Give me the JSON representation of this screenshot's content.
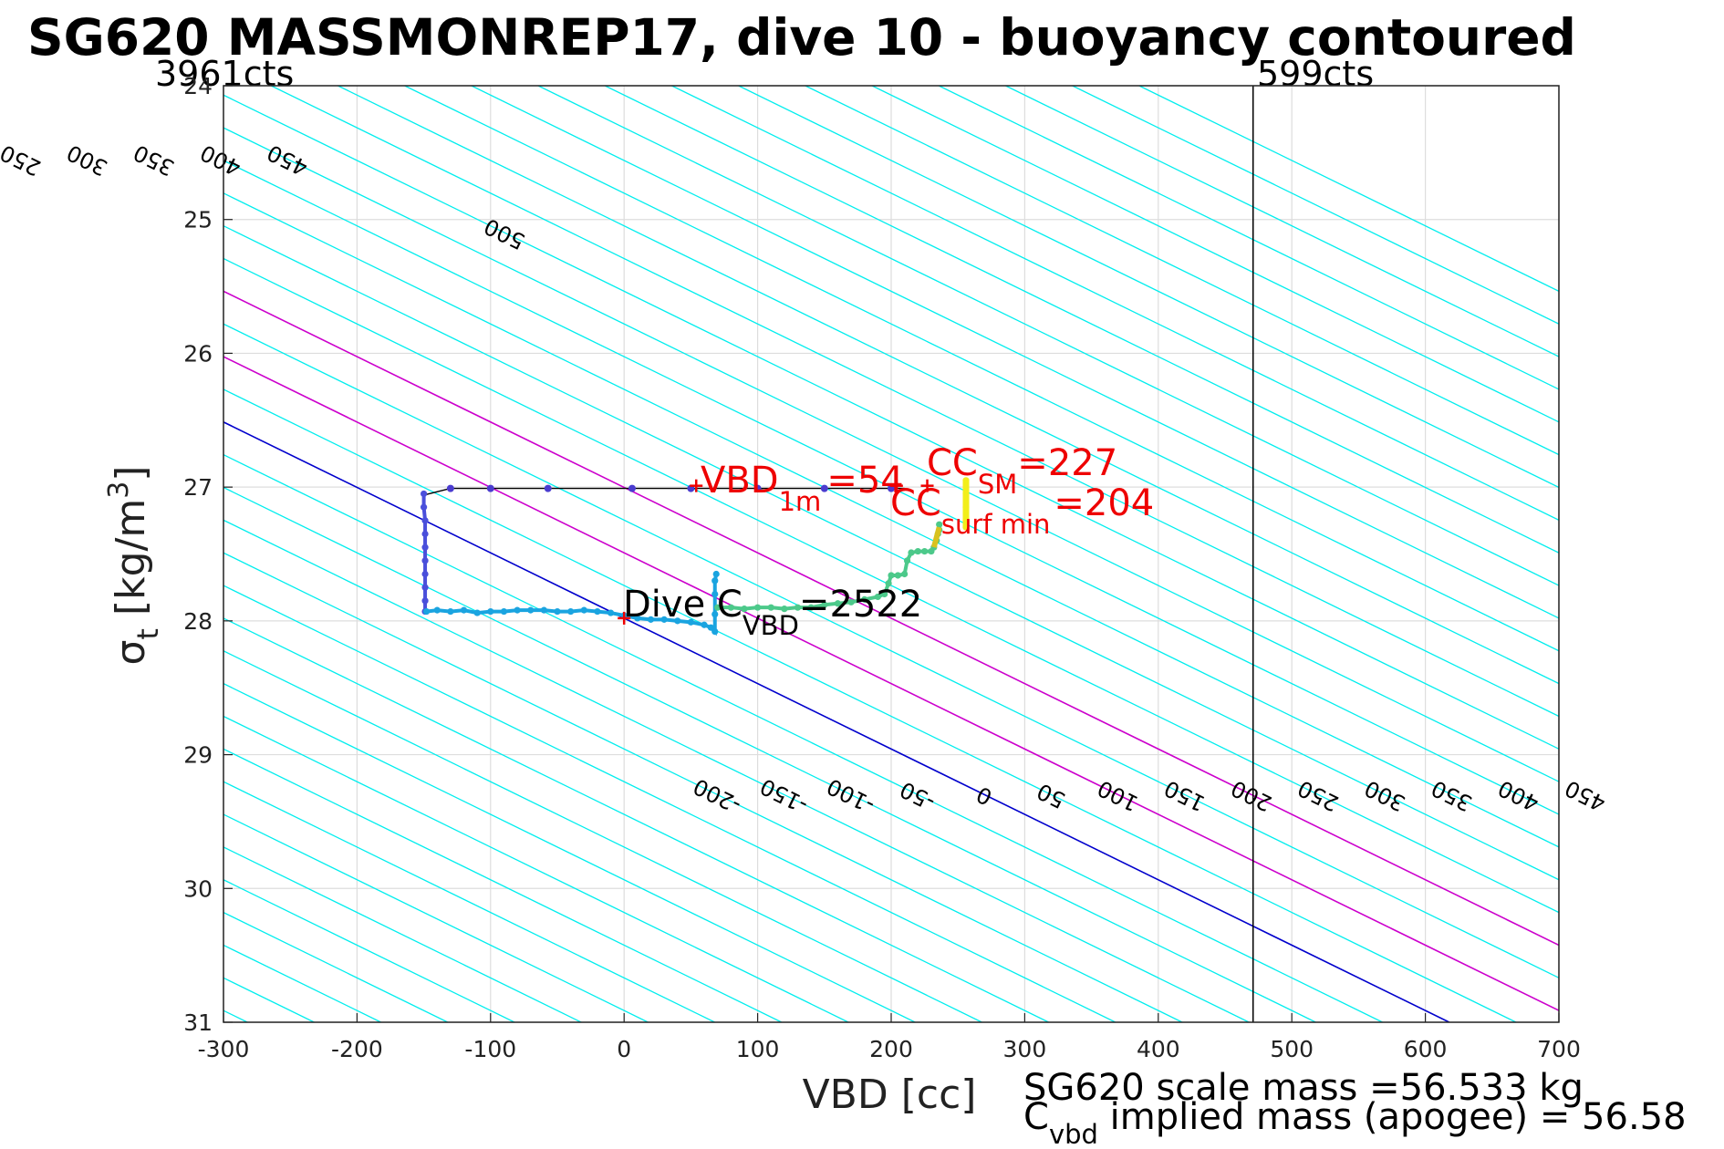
{
  "title": "SG620 MASSMONREP17, dive 10 - buoyancy contoured",
  "left_limit_label": "3961cts",
  "right_limit_label": "599cts",
  "xlabel": "VBD [cc]",
  "ylabel": {
    "main": "σ",
    "sub": "t",
    "unit_pre": " [kg/m",
    "unit_sup": "3",
    "unit_post": "]"
  },
  "annotations": {
    "vbd1m": {
      "main": "VBD",
      "sub": "1m",
      "value": "=54"
    },
    "cc_sm": {
      "main": "CC",
      "sub": "SM",
      "value": "=227"
    },
    "cc_surfmin": {
      "main": "CC",
      "sub": "surf min",
      "value": "=204"
    },
    "dive_cvbd": {
      "main": "Dive C",
      "sub": "VBD",
      "value": "=2522"
    }
  },
  "footer": {
    "scale_mass": "SG620 scale mass =56.533 kg",
    "implied_main": "C",
    "implied_sub": "vbd",
    "implied_rest": " implied mass (apogee) = 56.58"
  },
  "colors": {
    "contour": "#00eeee",
    "zero_contour": "#0000cc",
    "magenta_contour": "#cc00cc",
    "annotation": "#ee0000",
    "limit_line": "#000000",
    "grid": "#dddddd"
  },
  "chart_data": {
    "type": "scatter",
    "xlim": [
      -300,
      700
    ],
    "ylim": [
      24,
      31
    ],
    "y_reversed": true,
    "x_ticks": [
      -300,
      -200,
      -100,
      0,
      100,
      200,
      300,
      400,
      500,
      600,
      700
    ],
    "y_ticks": [
      24,
      25,
      26,
      27,
      28,
      29,
      30,
      31
    ],
    "grid": true,
    "vbd_limits": [
      -300,
      471
    ],
    "contours": {
      "slope_cc_per_kgm3": 204.6,
      "levels_top": [
        -450,
        -400,
        -350,
        -300,
        -250,
        -200,
        -150,
        -100,
        -50,
        0,
        50,
        100,
        150,
        200,
        250,
        300,
        350,
        400,
        450,
        500
      ],
      "levels_bottom": [
        -200,
        -150,
        -100,
        -50,
        0,
        50,
        100,
        150,
        200,
        250,
        300,
        350,
        400,
        450,
        500
      ],
      "special": {
        "zero": 0,
        "magenta": [
          100,
          200
        ]
      }
    },
    "series": [
      {
        "name": "descent",
        "x": [
          -150,
          -150,
          -149,
          -149,
          -149,
          -149,
          -149,
          -149,
          -149,
          -149
        ],
        "y": [
          27.05,
          27.15,
          27.25,
          27.35,
          27.45,
          27.55,
          27.65,
          27.75,
          27.85,
          27.93
        ]
      },
      {
        "name": "deep",
        "x": [
          -148,
          -140,
          -130,
          -120,
          -110,
          -100,
          -90,
          -80,
          -70,
          -60,
          -50,
          -40,
          -30,
          -20,
          -10,
          0,
          10,
          20,
          30,
          40,
          50,
          60,
          65,
          68,
          68,
          68,
          68,
          69
        ],
        "y": [
          27.93,
          27.92,
          27.93,
          27.92,
          27.94,
          27.93,
          27.93,
          27.92,
          27.92,
          27.92,
          27.93,
          27.93,
          27.92,
          27.93,
          27.94,
          27.96,
          27.98,
          27.99,
          27.99,
          28.0,
          28.01,
          28.03,
          28.05,
          28.08,
          27.95,
          27.8,
          27.7,
          27.65
        ]
      },
      {
        "name": "ascent",
        "x": [
          70,
          80,
          90,
          100,
          110,
          120,
          130,
          140,
          150,
          160,
          170,
          180,
          190,
          195,
          198,
          200,
          205,
          210,
          212,
          215,
          220,
          225,
          230,
          232,
          234,
          235,
          236,
          236
        ],
        "y": [
          27.9,
          27.9,
          27.91,
          27.9,
          27.9,
          27.91,
          27.9,
          27.9,
          27.88,
          27.87,
          27.86,
          27.84,
          27.82,
          27.8,
          27.72,
          27.66,
          27.66,
          27.65,
          27.55,
          27.49,
          27.48,
          27.48,
          27.48,
          27.45,
          27.4,
          27.35,
          27.32,
          27.28
        ]
      },
      {
        "name": "surface",
        "x": [
          256,
          256,
          256,
          256,
          256
        ],
        "y": [
          26.95,
          27.05,
          27.15,
          27.25,
          27.3
        ]
      },
      {
        "name": "surface_track",
        "x": [
          -150,
          -130,
          -100,
          -57,
          6,
          50,
          100,
          150,
          200,
          210
        ],
        "y": [
          27.06,
          27.01,
          27.01,
          27.01,
          27.01,
          27.01,
          27.01,
          27.01,
          27.01,
          27.01
        ]
      }
    ],
    "markers": [
      {
        "label": "Dive C_VBD",
        "x": 0,
        "y": 27.98
      },
      {
        "label": "VBD_1m",
        "x": 54,
        "y": 26.99
      },
      {
        "label": "CC_SM",
        "x": 227,
        "y": 26.99
      },
      {
        "label": "CC_surf_min",
        "x": 204,
        "y": 26.99
      }
    ]
  }
}
